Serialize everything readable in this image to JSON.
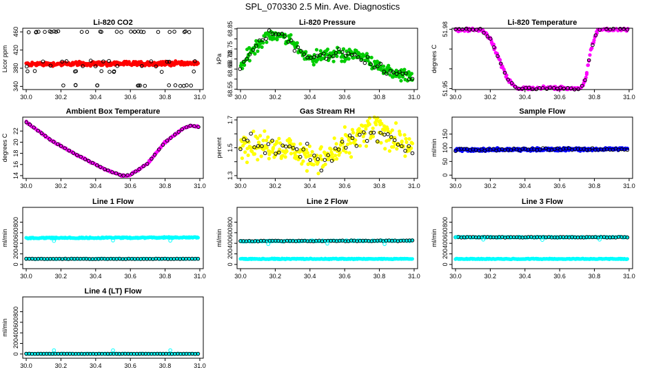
{
  "title": "SPL_070330  2.5 Min. Ave. Diagnostics",
  "chart_data": [
    {
      "type": "scatter",
      "title": "Li-820 CO2",
      "ylabel": "Licor ppm",
      "xlim": [
        29.98,
        31.02
      ],
      "ylim": [
        333,
        468
      ],
      "xticks": [
        30.0,
        30.2,
        30.4,
        30.6,
        30.8,
        31.0
      ],
      "yticks": [
        340,
        380,
        420,
        460
      ],
      "series": [
        {
          "name": "co2-fill",
          "color": "#ff0000",
          "style": "filled",
          "shape": "band",
          "y0": 385,
          "y1": 393,
          "y_end0": 387,
          "y_end1": 395,
          "noise": 2,
          "n": 260
        },
        {
          "name": "co2-black",
          "color": "#000000",
          "style": "open",
          "shape": "scatter3",
          "levels": [
            460,
            395,
            385,
            373,
            342
          ],
          "n": 70
        }
      ]
    },
    {
      "type": "scatter",
      "title": "Li-820 Pressure",
      "ylabel": "kPa",
      "xlim": [
        29.98,
        31.02
      ],
      "ylim": [
        68.548,
        68.853
      ],
      "xticks": [
        30.0,
        30.2,
        30.4,
        30.6,
        30.8,
        31.0
      ],
      "yticks": [
        68.55,
        68.6,
        68.65,
        68.7,
        68.75,
        68.8,
        68.85
      ],
      "ytick_labels": [
        "68.55",
        "",
        "68.65",
        "68.70",
        "68.75",
        "",
        "68.85"
      ],
      "series": [
        {
          "name": "pressure-green",
          "color": "#00cc00",
          "style": "filled",
          "shape": "curve",
          "x": [
            30.0,
            30.08,
            30.16,
            30.24,
            30.32,
            30.4,
            30.48,
            30.56,
            30.64,
            30.72,
            30.8,
            30.88,
            30.96,
            31.0
          ],
          "y": [
            68.66,
            68.76,
            68.825,
            68.815,
            68.76,
            68.705,
            68.715,
            68.725,
            68.72,
            68.705,
            68.66,
            68.63,
            68.61,
            68.61
          ],
          "spread": 0.05,
          "n": 240
        },
        {
          "name": "pressure-black",
          "color": "#000000",
          "style": "open",
          "shape": "curve",
          "x": [
            30.0,
            30.08,
            30.16,
            30.24,
            30.32,
            30.4,
            30.48,
            30.56,
            30.64,
            30.72,
            30.8,
            30.88,
            30.96,
            31.0
          ],
          "y": [
            68.66,
            68.76,
            68.825,
            68.815,
            68.76,
            68.705,
            68.715,
            68.725,
            68.72,
            68.705,
            68.66,
            68.63,
            68.61,
            68.61
          ],
          "spread": 0.035,
          "n": 55
        }
      ]
    },
    {
      "type": "scatter",
      "title": "Li-820 Temperature",
      "ylabel": "degrees C",
      "xlim": [
        29.98,
        31.02
      ],
      "ylim": [
        51.9495,
        51.9805
      ],
      "xticks": [
        30.0,
        30.2,
        30.4,
        30.6,
        30.8,
        31.0
      ],
      "yticks": [
        51.95,
        51.96,
        51.97,
        51.98
      ],
      "ytick_labels": [
        "51.95",
        "",
        "",
        "51.98"
      ],
      "series": [
        {
          "name": "temp-magenta",
          "color": "#ff00ff",
          "style": "filled",
          "shape": "curve",
          "x": [
            30.0,
            30.15,
            30.2,
            30.25,
            30.3,
            30.35,
            30.45,
            30.55,
            30.65,
            30.72,
            30.75,
            30.78,
            30.82,
            30.9,
            31.0
          ],
          "y": [
            51.98,
            51.98,
            51.975,
            51.965,
            51.955,
            51.95,
            51.95,
            51.95,
            51.95,
            51.95,
            51.955,
            51.97,
            51.98,
            51.98,
            51.98
          ],
          "spread": 0.0015,
          "n": 240
        },
        {
          "name": "temp-black",
          "color": "#000000",
          "style": "open",
          "shape": "curve",
          "x": [
            30.0,
            30.15,
            30.2,
            30.25,
            30.3,
            30.35,
            30.45,
            30.55,
            30.65,
            30.72,
            30.75,
            30.78,
            30.82,
            30.9,
            31.0
          ],
          "y": [
            51.98,
            51.98,
            51.975,
            51.965,
            51.955,
            51.95,
            51.95,
            51.95,
            51.95,
            51.95,
            51.955,
            51.97,
            51.98,
            51.98,
            51.98
          ],
          "spread": 0.0008,
          "n": 50
        }
      ]
    },
    {
      "type": "scatter",
      "title": "Ambient Box Temperature",
      "ylabel": "degrees C",
      "xlim": [
        29.98,
        31.02
      ],
      "ylim": [
        13.5,
        24.5
      ],
      "xticks": [
        30.0,
        30.2,
        30.4,
        30.6,
        30.8,
        31.0
      ],
      "yticks": [
        14,
        16,
        18,
        20,
        22
      ],
      "series": [
        {
          "name": "ambient-magenta",
          "color": "#ff00ff",
          "style": "filled",
          "shape": "curve",
          "x": [
            30.0,
            30.05,
            30.15,
            30.3,
            30.45,
            30.55,
            30.6,
            30.7,
            30.8,
            30.9,
            30.95,
            31.0
          ],
          "y": [
            23.6,
            22.5,
            20.2,
            17.6,
            15.2,
            14.0,
            14.1,
            16.2,
            20.0,
            22.4,
            23.0,
            22.7
          ],
          "spread": 0.2,
          "n": 220
        },
        {
          "name": "ambient-black",
          "color": "#000000",
          "style": "open",
          "shape": "curve",
          "x": [
            30.0,
            30.05,
            30.15,
            30.3,
            30.45,
            30.55,
            30.6,
            30.7,
            30.8,
            30.9,
            30.95,
            31.0
          ],
          "y": [
            23.6,
            22.5,
            20.2,
            17.6,
            15.2,
            14.0,
            14.1,
            16.2,
            20.0,
            22.4,
            23.0,
            22.7
          ],
          "spread": 0.05,
          "n": 45
        }
      ]
    },
    {
      "type": "scatter",
      "title": "Gas Stream RH",
      "ylabel": "percent",
      "xlim": [
        29.98,
        31.02
      ],
      "ylim": [
        1.28,
        1.72
      ],
      "xticks": [
        30.0,
        30.2,
        30.4,
        30.6,
        30.8,
        31.0
      ],
      "yticks": [
        1.3,
        1.4,
        1.5,
        1.6,
        1.7
      ],
      "ytick_labels": [
        "1.3",
        "",
        "1.5",
        "",
        "1.7"
      ],
      "series": [
        {
          "name": "rh-yellow",
          "color": "#ffff00",
          "style": "filled",
          "shape": "curve",
          "x": [
            30.0,
            30.1,
            30.2,
            30.3,
            30.4,
            30.48,
            30.55,
            30.65,
            30.75,
            30.8,
            30.9,
            31.0
          ],
          "y": [
            1.53,
            1.52,
            1.5,
            1.49,
            1.44,
            1.41,
            1.48,
            1.55,
            1.62,
            1.64,
            1.55,
            1.45
          ],
          "spread": 0.15,
          "n": 260
        },
        {
          "name": "rh-black",
          "color": "#000000",
          "style": "open",
          "shape": "curve",
          "x": [
            30.0,
            30.1,
            30.2,
            30.3,
            30.4,
            30.48,
            30.55,
            30.65,
            30.75,
            30.8,
            30.9,
            31.0
          ],
          "y": [
            1.53,
            1.52,
            1.5,
            1.49,
            1.44,
            1.41,
            1.48,
            1.55,
            1.62,
            1.64,
            1.55,
            1.45
          ],
          "spread": 0.1,
          "n": 50
        }
      ]
    },
    {
      "type": "scatter",
      "title": "Sample Flow",
      "ylabel": "ml/min",
      "xlim": [
        29.98,
        31.02
      ],
      "ylim": [
        -12,
        212
      ],
      "xticks": [
        30.0,
        30.2,
        30.4,
        30.6,
        30.8,
        31.0
      ],
      "yticks": [
        0,
        50,
        100,
        150
      ],
      "series": [
        {
          "name": "sample-blue",
          "color": "#0000ff",
          "style": "filled",
          "shape": "band",
          "y0": 88,
          "y1": 97,
          "y_end0": 91,
          "y_end1": 100,
          "noise": 3,
          "n": 260
        },
        {
          "name": "sample-black",
          "color": "#000000",
          "style": "open",
          "shape": "band",
          "y0": 89,
          "y1": 96,
          "y_end0": 92,
          "y_end1": 99,
          "noise": 2,
          "n": 60
        }
      ]
    },
    {
      "type": "scatter",
      "title": "Line 1 Flow",
      "ylabel": "ml/min",
      "xlim": [
        29.98,
        31.02
      ],
      "ylim": [
        -80,
        1080
      ],
      "xticks": [
        30.0,
        30.2,
        30.4,
        30.6,
        30.8,
        31.0
      ],
      "yticks": [
        0,
        200,
        400,
        600,
        800
      ],
      "series": [
        {
          "name": "line1-cyan-upper",
          "color": "#00ffff",
          "style": "filled",
          "shape": "band",
          "y0": 490,
          "y1": 510,
          "y_end0": 500,
          "y_end1": 520,
          "noise": 5,
          "n": 230
        },
        {
          "name": "line1-cyan-lower",
          "color": "#00ffff",
          "style": "filled",
          "shape": "band",
          "y0": 100,
          "y1": 112,
          "y_end0": 100,
          "y_end1": 112,
          "noise": 3,
          "n": 120
        },
        {
          "name": "line1-black",
          "color": "#000000",
          "style": "open",
          "shape": "band",
          "y0": 103,
          "y1": 108,
          "y_end0": 103,
          "y_end1": 108,
          "noise": 2,
          "n": 58
        },
        {
          "name": "line1-cyan-open",
          "color": "#00ffff",
          "style": "open",
          "shape": "points",
          "x": [
            30.16,
            30.5,
            30.83
          ],
          "y": [
            445,
            455,
            450
          ]
        }
      ]
    },
    {
      "type": "scatter",
      "title": "Line 2 Flow",
      "ylabel": "ml/min",
      "xlim": [
        29.98,
        31.02
      ],
      "ylim": [
        -80,
        1080
      ],
      "xticks": [
        30.0,
        30.2,
        30.4,
        30.6,
        30.8,
        31.0
      ],
      "yticks": [
        0,
        200,
        400,
        600,
        800
      ],
      "series": [
        {
          "name": "line2-cyan-upper",
          "color": "#00ffff",
          "style": "filled",
          "shape": "band",
          "y0": 430,
          "y1": 452,
          "y_end0": 440,
          "y_end1": 460,
          "noise": 4,
          "n": 200
        },
        {
          "name": "line2-cyan-lower",
          "color": "#00ffff",
          "style": "filled",
          "shape": "band",
          "y0": 98,
          "y1": 112,
          "y_end0": 98,
          "y_end1": 112,
          "noise": 4,
          "n": 220
        },
        {
          "name": "line2-black",
          "color": "#000000",
          "style": "open",
          "shape": "band",
          "y0": 435,
          "y1": 448,
          "y_end0": 440,
          "y_end1": 455,
          "noise": 2,
          "n": 60
        },
        {
          "name": "line2-cyan-open",
          "color": "#00ffff",
          "style": "open",
          "shape": "points",
          "x": [
            30.16,
            30.5,
            30.83
          ],
          "y": [
            385,
            395,
            385
          ]
        }
      ]
    },
    {
      "type": "scatter",
      "title": "Line 3 Flow",
      "ylabel": "ml/min",
      "xlim": [
        29.98,
        31.02
      ],
      "ylim": [
        -80,
        1080
      ],
      "xticks": [
        30.0,
        30.2,
        30.4,
        30.6,
        30.8,
        31.0
      ],
      "yticks": [
        0,
        200,
        400,
        600,
        800
      ],
      "series": [
        {
          "name": "line3-cyan-upper",
          "color": "#00ffff",
          "style": "filled",
          "shape": "band",
          "y0": 505,
          "y1": 525,
          "y_end0": 505,
          "y_end1": 525,
          "noise": 4,
          "n": 200
        },
        {
          "name": "line3-cyan-lower",
          "color": "#00ffff",
          "style": "filled",
          "shape": "band",
          "y0": 98,
          "y1": 112,
          "y_end0": 98,
          "y_end1": 112,
          "noise": 4,
          "n": 220
        },
        {
          "name": "line3-black",
          "color": "#000000",
          "style": "open",
          "shape": "band",
          "y0": 508,
          "y1": 520,
          "y_end0": 508,
          "y_end1": 520,
          "noise": 2,
          "n": 60
        },
        {
          "name": "line3-cyan-open",
          "color": "#00ffff",
          "style": "open",
          "shape": "points",
          "x": [
            30.0,
            30.16,
            30.5,
            30.83
          ],
          "y": [
            515,
            470,
            465,
            470
          ]
        }
      ]
    },
    {
      "type": "scatter",
      "title": "Line 4 (LT) Flow",
      "ylabel": "ml/min",
      "xlim": [
        29.98,
        31.02
      ],
      "ylim": [
        -80,
        1080
      ],
      "xticks": [
        30.0,
        30.2,
        30.4,
        30.6,
        30.8,
        31.0
      ],
      "yticks": [
        0,
        200,
        400,
        600,
        800
      ],
      "series": [
        {
          "name": "line4-cyan",
          "color": "#00ffff",
          "style": "filled",
          "shape": "band",
          "y0": 0,
          "y1": 8,
          "y_end0": 0,
          "y_end1": 8,
          "noise": 2,
          "n": 220
        },
        {
          "name": "line4-black",
          "color": "#000000",
          "style": "open",
          "shape": "band",
          "y0": 1,
          "y1": 5,
          "y_end0": 1,
          "y_end1": 5,
          "noise": 1,
          "n": 60
        },
        {
          "name": "line4-cyan-open",
          "color": "#00ffff",
          "style": "open",
          "shape": "points",
          "x": [
            30.16,
            30.5,
            30.83
          ],
          "y": [
            70,
            70,
            70
          ]
        }
      ]
    }
  ]
}
